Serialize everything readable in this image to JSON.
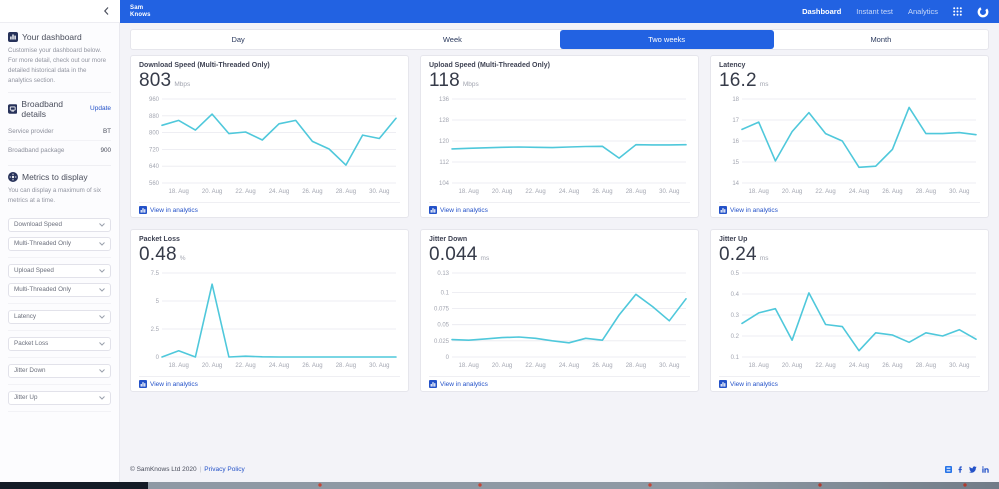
{
  "header": {
    "logo_line1": "Sam",
    "logo_line2": "Knows",
    "nav": [
      {
        "label": "Dashboard",
        "active": true
      },
      {
        "label": "Instant test",
        "active": false
      },
      {
        "label": "Analytics",
        "active": false
      }
    ],
    "icons": {
      "apps": "grid-3x3-dots",
      "account": "open-circle-avatar"
    }
  },
  "sidebar": {
    "collapse_icon": "chevron-left",
    "dashboard": {
      "title": "Your dashboard",
      "icon": "bar-chart-square",
      "description": "Customise your dashboard below. For more detail, check out our more detailed historical data in the analytics section."
    },
    "broadband": {
      "title": "Broadband details",
      "icon": "monitor-square",
      "update_label": "Update",
      "rows": [
        {
          "label": "Service provider",
          "value": "BT"
        },
        {
          "label": "Broadband package",
          "value": "900"
        }
      ]
    },
    "metrics": {
      "title": "Metrics to display",
      "icon": "gear-circle",
      "description": "You can display a maximum of six metrics at a time.",
      "selects": [
        "Download Speed",
        "Multi-Threaded Only",
        "Upload Speed",
        "Multi-Threaded Only",
        "Latency",
        "Packet Loss",
        "Jitter Down",
        "Jitter Up"
      ]
    }
  },
  "tabs": [
    {
      "label": "Day",
      "active": false
    },
    {
      "label": "Week",
      "active": false
    },
    {
      "label": "Two weeks",
      "active": true
    },
    {
      "label": "Month",
      "active": false
    }
  ],
  "cards": [
    {
      "title": "Download Speed (Multi-Threaded Only)",
      "value": "803",
      "unit": "Mbps",
      "link": "View in analytics"
    },
    {
      "title": "Upload Speed (Multi-Threaded Only)",
      "value": "118",
      "unit": "Mbps",
      "link": "View in analytics"
    },
    {
      "title": "Latency",
      "value": "16.2",
      "unit": "ms",
      "link": "View in analytics"
    },
    {
      "title": "Packet Loss",
      "value": "0.48",
      "unit": "%",
      "link": "View in analytics"
    },
    {
      "title": "Jitter Down",
      "value": "0.044",
      "unit": "ms",
      "link": "View in analytics"
    },
    {
      "title": "Jitter Up",
      "value": "0.24",
      "unit": "ms",
      "link": "View in analytics"
    }
  ],
  "chart_data": [
    {
      "type": "line",
      "title": "Download Speed (Multi-Threaded Only)",
      "ylabel": "Mbps",
      "ylim": [
        560,
        960
      ],
      "y_ticks": [
        560,
        640,
        720,
        800,
        880,
        960
      ],
      "x_tick_labels": [
        "18. Aug",
        "20. Aug",
        "22. Aug",
        "24. Aug",
        "26. Aug",
        "28. Aug",
        "30. Aug"
      ],
      "x_tick_indices": [
        1,
        3,
        5,
        7,
        9,
        11,
        13
      ],
      "values": [
        835,
        858,
        812,
        888,
        795,
        803,
        765,
        842,
        858,
        758,
        722,
        645,
        788,
        772,
        868
      ]
    },
    {
      "type": "line",
      "title": "Upload Speed (Multi-Threaded Only)",
      "ylabel": "Mbps",
      "ylim": [
        104,
        136
      ],
      "y_ticks": [
        104,
        112,
        120,
        128,
        136
      ],
      "x_tick_labels": [
        "18. Aug",
        "20. Aug",
        "22. Aug",
        "24. Aug",
        "26. Aug",
        "28. Aug",
        "30. Aug"
      ],
      "x_tick_indices": [
        1,
        3,
        5,
        7,
        9,
        11,
        13
      ],
      "values": [
        117,
        117.2,
        117.4,
        117.6,
        117.7,
        117.6,
        117.5,
        117.7,
        117.9,
        118,
        113.5,
        118.6,
        118.5,
        118.5,
        118.6
      ]
    },
    {
      "type": "line",
      "title": "Latency",
      "ylabel": "ms",
      "ylim": [
        14,
        18
      ],
      "y_ticks": [
        14,
        15,
        16,
        17,
        18
      ],
      "x_tick_labels": [
        "18. Aug",
        "20. Aug",
        "22. Aug",
        "24. Aug",
        "26. Aug",
        "28. Aug",
        "30. Aug"
      ],
      "x_tick_indices": [
        1,
        3,
        5,
        7,
        9,
        11,
        13
      ],
      "values": [
        16.55,
        16.9,
        15.05,
        16.45,
        17.35,
        16.35,
        16.0,
        14.75,
        14.8,
        15.6,
        17.6,
        16.35,
        16.35,
        16.4,
        16.3
      ]
    },
    {
      "type": "line",
      "title": "Packet Loss",
      "ylabel": "%",
      "ylim": [
        0,
        7.5
      ],
      "y_ticks": [
        0,
        2.5,
        5,
        7.5
      ],
      "x_tick_labels": [
        "18. Aug",
        "20. Aug",
        "22. Aug",
        "24. Aug",
        "26. Aug",
        "28. Aug",
        "30. Aug"
      ],
      "x_tick_indices": [
        1,
        3,
        5,
        7,
        9,
        11,
        13
      ],
      "values": [
        0,
        0.55,
        0,
        6.5,
        0,
        0.07,
        0.02,
        0,
        0,
        0,
        0,
        0,
        0,
        0,
        0
      ]
    },
    {
      "type": "line",
      "title": "Jitter Down",
      "ylabel": "ms",
      "ylim": [
        0,
        0.13
      ],
      "y_ticks": [
        "0",
        "0.025",
        "0.05",
        "0.075",
        "0.1",
        "0.13"
      ],
      "x_tick_labels": [
        "18. Aug",
        "20. Aug",
        "22. Aug",
        "24. Aug",
        "26. Aug",
        "28. Aug",
        "30. Aug"
      ],
      "x_tick_indices": [
        1,
        3,
        5,
        7,
        9,
        11,
        13
      ],
      "values": [
        0.027,
        0.026,
        0.028,
        0.03,
        0.031,
        0.029,
        0.025,
        0.022,
        0.029,
        0.026,
        0.065,
        0.097,
        0.078,
        0.056,
        0.09
      ]
    },
    {
      "type": "line",
      "title": "Jitter Up",
      "ylabel": "ms",
      "ylim": [
        0.1,
        0.5
      ],
      "y_ticks": [
        0.1,
        0.2,
        0.3,
        0.4,
        0.5
      ],
      "x_tick_labels": [
        "18. Aug",
        "20. Aug",
        "22. Aug",
        "24. Aug",
        "26. Aug",
        "28. Aug",
        "30. Aug"
      ],
      "x_tick_indices": [
        1,
        3,
        5,
        7,
        9,
        11,
        13
      ],
      "values": [
        0.26,
        0.31,
        0.33,
        0.18,
        0.405,
        0.255,
        0.245,
        0.13,
        0.215,
        0.205,
        0.17,
        0.215,
        0.2,
        0.23,
        0.185
      ]
    }
  ],
  "footer": {
    "copyright": "© SamKnows Ltd 2020",
    "separator": "|",
    "privacy": "Privacy Policy",
    "social_icons": [
      "glassdoor",
      "facebook",
      "twitter",
      "linkedin"
    ]
  },
  "colors": {
    "header_blue": "#2262E2",
    "active_tab_blue": "#2262E2",
    "link_blue": "#2452C8",
    "chart_line": "#4FC8DB",
    "gridline": "#E9E9EF",
    "tick_text": "#A3A6B1"
  }
}
